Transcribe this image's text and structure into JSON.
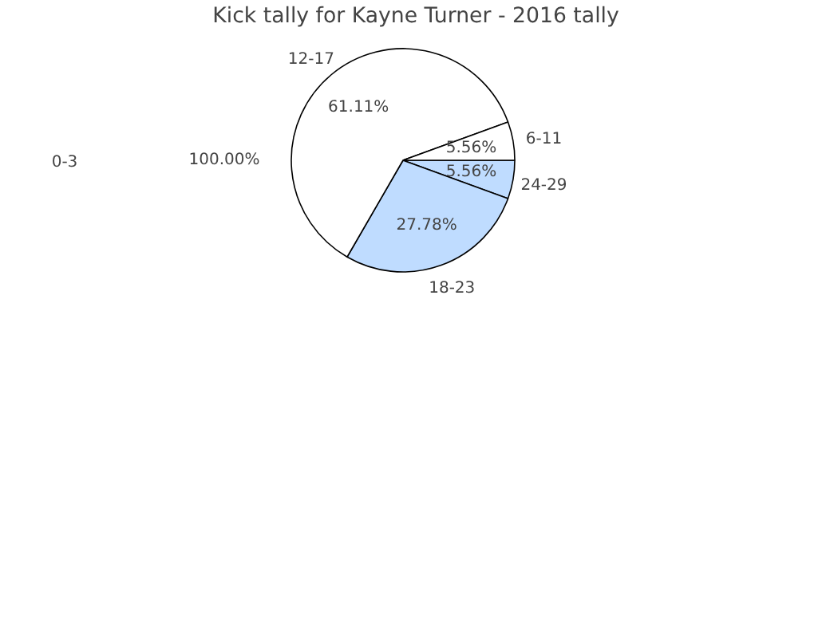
{
  "chart_data": {
    "type": "pie",
    "title": "Kick tally for Kayne Turner - 2016 tally",
    "categories": [
      "24-29",
      "18-23",
      "12-17",
      "6-11"
    ],
    "values": [
      5.56,
      27.78,
      61.11,
      5.56
    ],
    "colors": [
      "#bfdcff",
      "#bfdcff",
      "#ffffff",
      "#ffffff"
    ],
    "value_labels": [
      "5.56%",
      "27.78%",
      "61.11%",
      "5.56%"
    ],
    "annotations": [
      "0-3",
      "100.00%"
    ],
    "legend": false
  }
}
